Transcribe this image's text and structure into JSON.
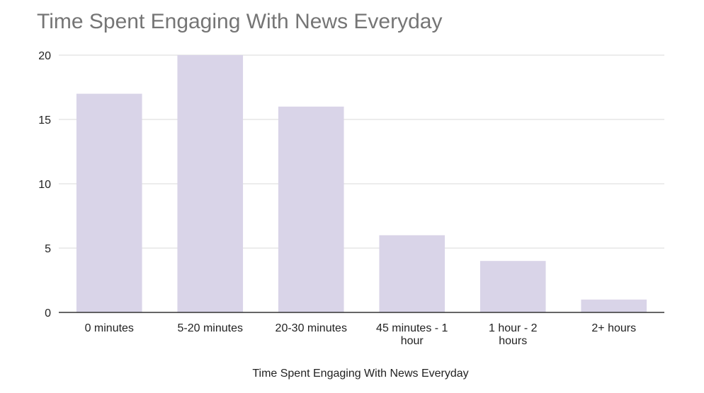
{
  "chart_data": {
    "type": "bar",
    "title": "Time Spent Engaging With News Everyday",
    "xlabel": "Time Spent Engaging With News Everyday",
    "ylabel": "",
    "categories": [
      [
        "0 minutes"
      ],
      [
        "5-20 minutes"
      ],
      [
        "20-30 minutes"
      ],
      [
        "45 minutes - 1",
        "hour"
      ],
      [
        "1 hour - 2",
        "hours"
      ],
      [
        "2+ hours"
      ]
    ],
    "values": [
      17,
      20,
      16,
      6,
      4,
      1
    ],
    "ylim": [
      0,
      20
    ],
    "yticks": [
      "0",
      "5",
      "10",
      "15",
      "20"
    ],
    "grid": true,
    "legend": "none",
    "bar_color": "#d9d4e8",
    "grid_color": "#d9d9d9",
    "axis_color": "#333333"
  }
}
